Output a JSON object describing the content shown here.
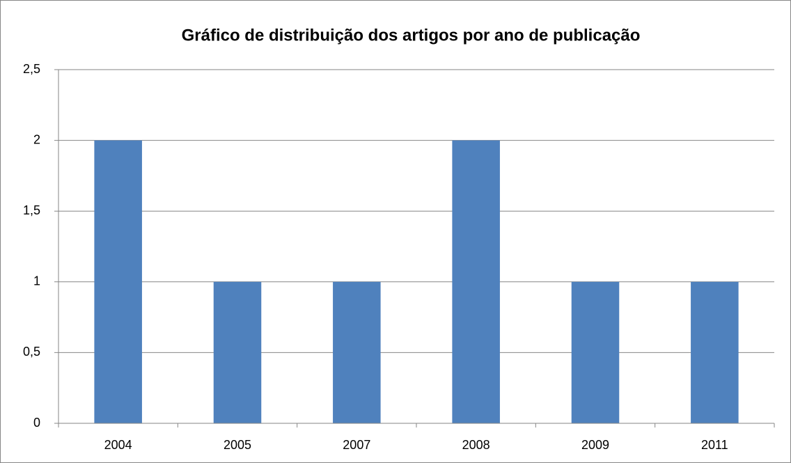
{
  "chart_data": {
    "type": "bar",
    "title": "Gráfico de distribuição dos artigos por ano de publicação",
    "categories": [
      "2004",
      "2005",
      "2007",
      "2008",
      "2009",
      "2011"
    ],
    "values": [
      2,
      1,
      1,
      2,
      1,
      1
    ],
    "color": "#4f81bd",
    "ylim": [
      0,
      2.5
    ],
    "yticks": [
      0,
      {
        "value": 0.5,
        "label": "0,5"
      },
      1,
      {
        "value": 1.5,
        "label": "1,5"
      },
      2,
      {
        "value": 2.5,
        "label": "2,5"
      }
    ],
    "grid": true
  }
}
